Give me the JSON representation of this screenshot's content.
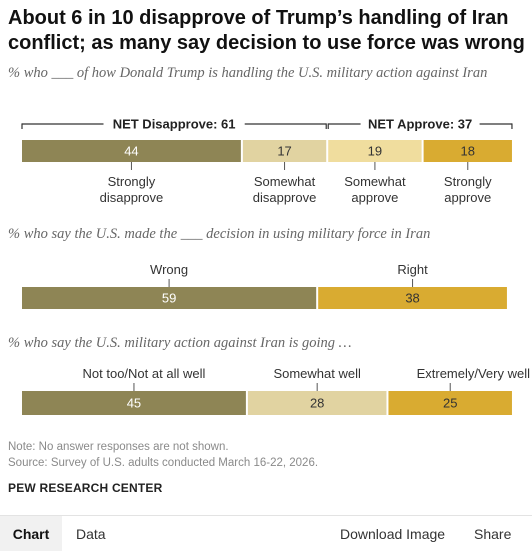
{
  "title": "About 6 in 10 disapprove of Trump’s handling of Iran conflict; as many say decision to use force was wrong",
  "sections": [
    {
      "subtitle": "% who ___ of how Donald Trump is handling the U.S. military action against Iran"
    },
    {
      "subtitle": "% who say the U.S. made the ___ decision in using military force in Iran"
    },
    {
      "subtitle": "% who say the U.S. military action against Iran is going …"
    }
  ],
  "colors": {
    "dark": "#8e8555",
    "light": "#e1d3a1",
    "pale": "#f0dd9e",
    "gold": "#d9ab31"
  },
  "chart_data": [
    {
      "type": "bar",
      "orientation": "horizontal-stacked",
      "groups": [
        {
          "label": "NET Disapprove: 61",
          "value": 61
        },
        {
          "label": "NET Approve: 37",
          "value": 37
        }
      ],
      "segments": [
        {
          "label": "Strongly disapprove",
          "lines": [
            "Strongly",
            "disapprove"
          ],
          "value": 44,
          "display": "44",
          "color": "#8e8555"
        },
        {
          "label": "Somewhat disapprove",
          "lines": [
            "Somewhat",
            "disapprove"
          ],
          "value": 17,
          "display": "17",
          "color": "#e1d3a1"
        },
        {
          "label": "Somewhat approve",
          "lines": [
            "Somewhat",
            "approve"
          ],
          "value": 19,
          "display": "19",
          "color": "#f0dd9e"
        },
        {
          "label": "Strongly approve",
          "lines": [
            "Strongly",
            "approve"
          ],
          "value": 18,
          "display": "18",
          "color": "#d9ab31"
        }
      ]
    },
    {
      "type": "bar",
      "orientation": "horizontal-stacked",
      "segments": [
        {
          "label": "Wrong",
          "lines": [
            "Wrong"
          ],
          "value": 59,
          "display": "59",
          "color": "#8e8555"
        },
        {
          "label": "Right",
          "lines": [
            "Right"
          ],
          "value": 38,
          "display": "38",
          "color": "#d9ab31"
        }
      ]
    },
    {
      "type": "bar",
      "orientation": "horizontal-stacked",
      "segments": [
        {
          "label": "Not too/Not at all well",
          "lines": [
            "Not too/Not at all well"
          ],
          "value": 45,
          "display": "45",
          "color": "#8e8555"
        },
        {
          "label": "Somewhat well",
          "lines": [
            "Somewhat well"
          ],
          "value": 28,
          "display": "28",
          "color": "#e1d3a1"
        },
        {
          "label": "Extremely/Very well",
          "lines": [
            "Extremely/Very well"
          ],
          "value": 25,
          "display": "25",
          "color": "#d9ab31"
        }
      ]
    }
  ],
  "notes": {
    "note": "Note: No answer responses are not shown.",
    "source": "Source: Survey of U.S. adults conducted March 16-22, 2026."
  },
  "brand": "PEW RESEARCH CENTER",
  "footer": {
    "chart_tab": "Chart",
    "data_tab": "Data",
    "download": "Download Image",
    "share": "Share"
  }
}
